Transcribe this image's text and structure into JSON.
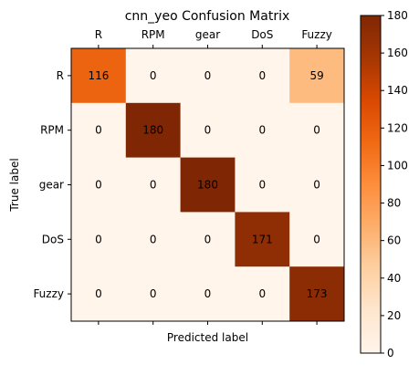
{
  "chart_data": {
    "type": "heatmap",
    "title": "cnn_yeo Confusion Matrix",
    "xlabel": "Predicted label",
    "ylabel": "True label",
    "x_categories": [
      "R",
      "RPM",
      "gear",
      "DoS",
      "Fuzzy"
    ],
    "y_categories": [
      "R",
      "RPM",
      "gear",
      "DoS",
      "Fuzzy"
    ],
    "values": [
      [
        116,
        0,
        0,
        0,
        59
      ],
      [
        0,
        180,
        0,
        0,
        0
      ],
      [
        0,
        0,
        180,
        0,
        0
      ],
      [
        0,
        0,
        0,
        171,
        0
      ],
      [
        0,
        0,
        0,
        0,
        173
      ]
    ],
    "colormap": "Oranges",
    "colormap_stops": [
      "#fff5eb",
      "#fee6ce",
      "#fdd0a2",
      "#fdae6b",
      "#fd8d3c",
      "#f16913",
      "#d94801",
      "#a63603",
      "#7f2704"
    ],
    "color_range": [
      0,
      180
    ],
    "colorbar_ticks": [
      0,
      20,
      40,
      60,
      80,
      100,
      120,
      140,
      160,
      180
    ],
    "x_tick_position": "top",
    "grid": false
  }
}
